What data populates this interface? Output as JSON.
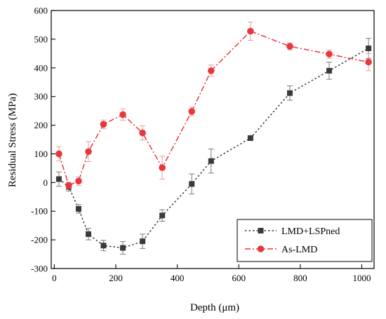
{
  "chart_data": {
    "type": "line",
    "title": "",
    "xlabel": "Depth (μm)",
    "ylabel": "Residual Stress (MPa)",
    "xlim": [
      -10,
      1040
    ],
    "ylim": [
      -300,
      600
    ],
    "xticks": [
      0,
      200,
      400,
      600,
      800,
      1000
    ],
    "yticks": [
      -300,
      -200,
      -100,
      0,
      100,
      200,
      300,
      400,
      500,
      600
    ],
    "legend_position": "bottom-right",
    "grid": false,
    "series": [
      {
        "name": "LMD+LSPned",
        "color": "#3a3a3a",
        "marker": "square",
        "line_style": "dotted",
        "x": [
          15,
          47,
          79,
          111,
          160,
          223,
          287,
          351,
          447,
          510,
          638,
          766,
          894,
          1022
        ],
        "y": [
          12,
          -15,
          -92,
          -180,
          -220,
          -228,
          -205,
          -115,
          -5,
          75,
          155,
          312,
          390,
          468
        ],
        "error": [
          25,
          15,
          15,
          20,
          18,
          22,
          25,
          20,
          35,
          42,
          8,
          25,
          30,
          35
        ]
      },
      {
        "name": "As-LMD",
        "color": "#e8383d",
        "marker": "circle",
        "line_style": "dashdot",
        "x": [
          15,
          47,
          79,
          111,
          160,
          223,
          287,
          351,
          447,
          510,
          638,
          766,
          894,
          1022
        ],
        "y": [
          100,
          -10,
          5,
          108,
          203,
          237,
          173,
          52,
          248,
          390,
          528,
          475,
          448,
          420
        ],
        "error": [
          25,
          10,
          15,
          35,
          15,
          20,
          25,
          40,
          15,
          20,
          32,
          12,
          15,
          30
        ]
      }
    ]
  }
}
